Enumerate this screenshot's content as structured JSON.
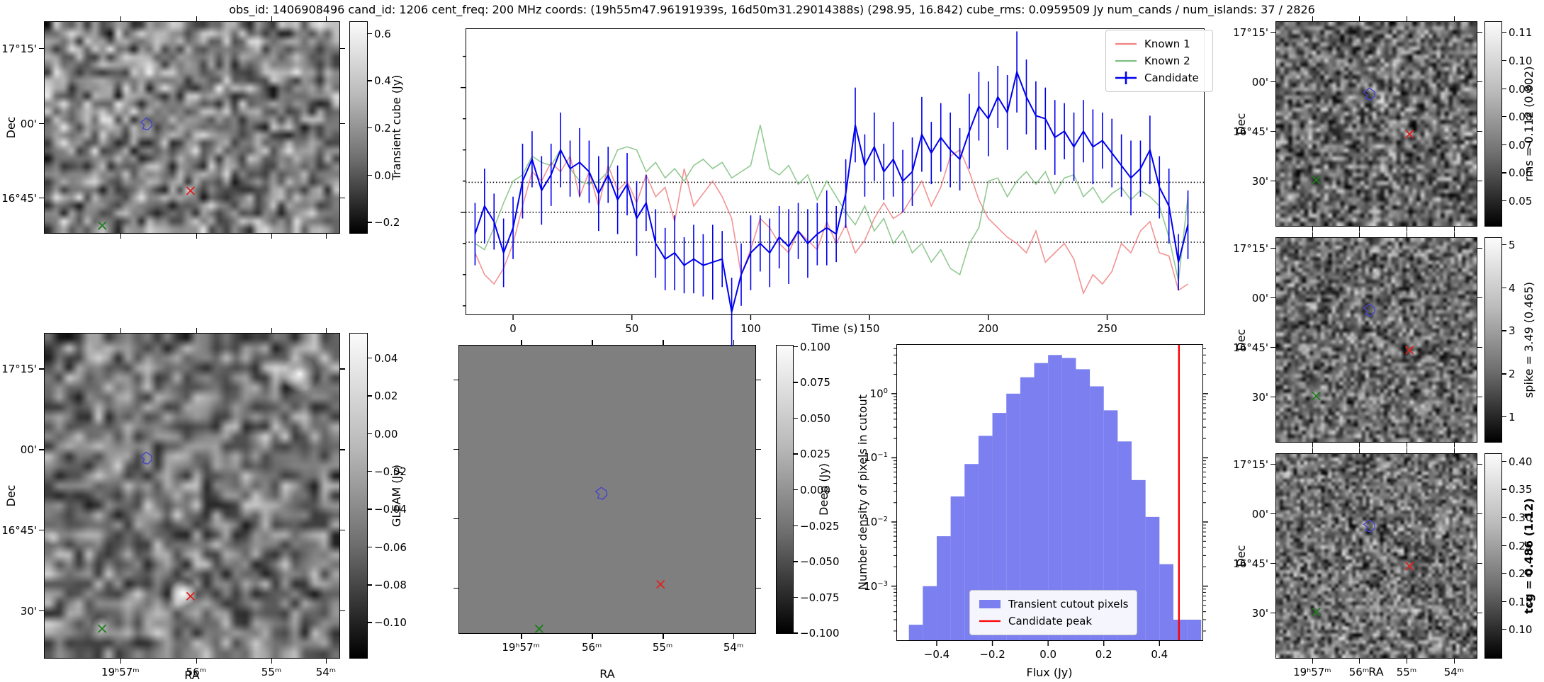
{
  "title": "obs_id: 1406908496 cand_id: 1206 cent_freq: 200 MHz coords: (19h55m47.96191939s, 16d50m31.29014388s) (298.95, 16.842) cube_rms: 0.0959509 Jy num_cands / num_islands: 37 / 2826",
  "axes": {
    "dec_label": "Dec",
    "ra_label": "RA"
  },
  "colors": {
    "known1": "#f08080",
    "known2": "#7fbf7f",
    "candidate": "#0000ee",
    "hist_fill": "#7b7ff0",
    "peak_line": "#ff0000",
    "contour": "#4646c8",
    "known1_marker": "#dd2222",
    "known2_marker": "#1e7d1e",
    "deep_gray": "#7f7f7f"
  },
  "panels": {
    "transient": {
      "dec_ticks": [
        {
          "label": "17°15'",
          "rel": 0.127
        },
        {
          "label": "00'",
          "rel": 0.48
        },
        {
          "label": "16°45'",
          "rel": 0.83
        }
      ],
      "ra_rel": [
        0.258,
        0.514,
        0.768,
        0.952
      ],
      "colorbar": {
        "label": "Transient cube (Jy)",
        "ticks": [
          {
            "label": "0.6",
            "rel": 0.056
          },
          {
            "label": "0.4",
            "rel": 0.278
          },
          {
            "label": "0.2",
            "rel": 0.5
          },
          {
            "label": "0.0",
            "rel": 0.722
          },
          {
            "label": "−0.2",
            "rel": 0.944
          }
        ]
      },
      "markers": {
        "candidate": [
          0.345,
          0.485
        ],
        "known1": [
          0.495,
          0.8
        ],
        "known2": [
          0.195,
          0.965
        ]
      }
    },
    "gleam": {
      "dec_ticks": [
        {
          "label": "17°15'",
          "rel": 0.109
        },
        {
          "label": "00'",
          "rel": 0.357
        },
        {
          "label": "16°45'",
          "rel": 0.604
        },
        {
          "label": "30'",
          "rel": 0.852
        }
      ],
      "ra_ticks": [
        {
          "label": "19ʰ57ᵐ",
          "rel": 0.258
        },
        {
          "label": "56ᵐ",
          "rel": 0.514
        },
        {
          "label": "55ᵐ",
          "rel": 0.768
        },
        {
          "label": "54ᵐ",
          "rel": 0.952
        }
      ],
      "colorbar": {
        "label": "GLEAM (Jy)",
        "ticks": [
          {
            "label": "0.04",
            "rel": 0.076
          },
          {
            "label": "0.02",
            "rel": 0.192
          },
          {
            "label": "0.00",
            "rel": 0.308
          },
          {
            "label": "−0.02",
            "rel": 0.424
          },
          {
            "label": "−0.04",
            "rel": 0.54
          },
          {
            "label": "−0.06",
            "rel": 0.656
          },
          {
            "label": "−0.08",
            "rel": 0.772
          },
          {
            "label": "−0.10",
            "rel": 0.888
          }
        ]
      },
      "markers": {
        "candidate": [
          0.345,
          0.385
        ],
        "known1": [
          0.495,
          0.81
        ],
        "known2": [
          0.195,
          0.91
        ]
      }
    },
    "deep": {
      "dec_rel": [
        0.12,
        0.36,
        0.6,
        0.84
      ],
      "ra_ticks": [
        {
          "label": "19ʰ57ᵐ",
          "rel": 0.21
        },
        {
          "label": "56ᵐ",
          "rel": 0.448
        },
        {
          "label": "55ᵐ",
          "rel": 0.686
        },
        {
          "label": "54ᵐ",
          "rel": 0.924
        }
      ],
      "colorbar": {
        "label": "Deep (Jy)",
        "ticks": [
          {
            "label": "0.100",
            "rel": 0.004
          },
          {
            "label": "0.075",
            "rel": 0.128
          },
          {
            "label": "0.050",
            "rel": 0.252
          },
          {
            "label": "0.025",
            "rel": 0.376
          },
          {
            "label": "0.000",
            "rel": 0.5
          },
          {
            "label": "−0.025",
            "rel": 0.624
          },
          {
            "label": "−0.050",
            "rel": 0.748
          },
          {
            "label": "−0.075",
            "rel": 0.872
          },
          {
            "label": "−0.100",
            "rel": 0.996
          }
        ]
      },
      "markers": {
        "candidate": [
          0.48,
          0.515
        ],
        "known1": [
          0.68,
          0.83
        ],
        "known2": [
          0.27,
          0.985
        ]
      }
    },
    "rms": {
      "dec_ticks": [
        {
          "label": "17°15'",
          "rel": 0.052
        },
        {
          "label": "00'",
          "rel": 0.293
        },
        {
          "label": "16°45'",
          "rel": 0.534
        },
        {
          "label": "30'",
          "rel": 0.776
        }
      ],
      "ra_rel": [
        0.182,
        0.414,
        0.649,
        0.884
      ],
      "colorbar": {
        "label": "rms = 0.112 (0.802)",
        "ticks": [
          {
            "label": "0.11",
            "rel": 0.052
          },
          {
            "label": "0.10",
            "rel": 0.189
          },
          {
            "label": "0.09",
            "rel": 0.326
          },
          {
            "label": "0.08",
            "rel": 0.462
          },
          {
            "label": "0.07",
            "rel": 0.599
          },
          {
            "label": "0.06",
            "rel": 0.736
          },
          {
            "label": "0.05",
            "rel": 0.872
          }
        ]
      },
      "markers": {
        "candidate": [
          0.465,
          0.355
        ],
        "known1": [
          0.665,
          0.55
        ],
        "known2": [
          0.2,
          0.775
        ]
      }
    },
    "spike": {
      "dec_ticks": [
        {
          "label": "17°15'",
          "rel": 0.052
        },
        {
          "label": "00'",
          "rel": 0.293
        },
        {
          "label": "16°45'",
          "rel": 0.534
        },
        {
          "label": "30'",
          "rel": 0.776
        }
      ],
      "ra_rel": [
        0.182,
        0.414,
        0.649,
        0.884
      ],
      "colorbar": {
        "label": "spike = 3.49 (0.465)",
        "ticks": [
          {
            "label": "5",
            "rel": 0.034
          },
          {
            "label": "4",
            "rel": 0.244
          },
          {
            "label": "3",
            "rel": 0.453
          },
          {
            "label": "2",
            "rel": 0.663
          },
          {
            "label": "1",
            "rel": 0.872
          }
        ]
      },
      "markers": {
        "candidate": [
          0.465,
          0.355
        ],
        "known1": [
          0.665,
          0.55
        ],
        "known2": [
          0.2,
          0.775
        ]
      }
    },
    "tcg": {
      "dec_ticks": [
        {
          "label": "17°15'",
          "rel": 0.052
        },
        {
          "label": "00'",
          "rel": 0.293
        },
        {
          "label": "16°45'",
          "rel": 0.534
        },
        {
          "label": "30'",
          "rel": 0.776
        }
      ],
      "ra_ticks": [
        {
          "label": "19ʰ57ᵐ",
          "rel": 0.182
        },
        {
          "label": "56ᵐ",
          "rel": 0.414
        },
        {
          "label": "55ᵐ",
          "rel": 0.649
        },
        {
          "label": "54ᵐ",
          "rel": 0.884
        }
      ],
      "colorbar": {
        "label": "tcg = 0.486 (1.12)",
        "bold": true,
        "ticks": [
          {
            "label": "0.40",
            "rel": 0.038
          },
          {
            "label": "0.35",
            "rel": 0.174
          },
          {
            "label": "0.30",
            "rel": 0.31
          },
          {
            "label": "0.25",
            "rel": 0.447
          },
          {
            "label": "0.20",
            "rel": 0.583
          },
          {
            "label": "0.15",
            "rel": 0.719
          },
          {
            "label": "0.10",
            "rel": 0.855
          }
        ]
      },
      "markers": {
        "candidate": [
          0.465,
          0.355
        ],
        "known1": [
          0.665,
          0.55
        ],
        "known2": [
          0.2,
          0.775
        ]
      }
    }
  },
  "chart_data": [
    {
      "type": "line",
      "title": "",
      "xlabel": "Time (s)",
      "ylabel": "",
      "xlim": [
        -20,
        291
      ],
      "ylim": [
        -0.33,
        0.59
      ],
      "x_ticks": [
        0,
        50,
        100,
        150,
        200,
        250
      ],
      "hlines": [
        0.096,
        0.0,
        -0.096
      ],
      "hline_style": "dotted",
      "legend_position": "upper right",
      "x": [
        -16,
        -12,
        -8,
        -4,
        0,
        4,
        8,
        12,
        16,
        20,
        24,
        28,
        32,
        36,
        40,
        44,
        48,
        52,
        56,
        60,
        64,
        68,
        72,
        76,
        80,
        84,
        88,
        92,
        96,
        100,
        104,
        108,
        112,
        116,
        120,
        124,
        128,
        132,
        136,
        140,
        144,
        148,
        152,
        156,
        160,
        164,
        168,
        172,
        176,
        180,
        184,
        188,
        192,
        196,
        200,
        204,
        208,
        212,
        216,
        220,
        224,
        228,
        232,
        236,
        240,
        244,
        248,
        252,
        256,
        260,
        264,
        268,
        272,
        276,
        280,
        284
      ],
      "series": [
        {
          "name": "Known 1",
          "y": [
            -0.13,
            -0.2,
            -0.23,
            -0.18,
            -0.1,
            0.02,
            0.13,
            0.1,
            0.16,
            0.13,
            0.18,
            0.05,
            0.13,
            0.02,
            0.15,
            0.07,
            0.1,
            0.03,
            0.12,
            0.05,
            0.08,
            -0.03,
            0.14,
            0.02,
            0.06,
            0.1,
            0.05,
            -0.02,
            -0.2,
            -0.12,
            -0.02,
            -0.05,
            -0.1,
            -0.13,
            -0.06,
            -0.09,
            -0.12,
            -0.03,
            -0.1,
            -0.04,
            -0.13,
            -0.09,
            -0.02,
            0.03,
            -0.02,
            0.0,
            0.05,
            0.1,
            0.02,
            0.08,
            0.18,
            0.2,
            0.13,
            0.04,
            -0.02,
            -0.05,
            -0.08,
            -0.1,
            -0.13,
            -0.06,
            -0.16,
            -0.13,
            -0.1,
            -0.15,
            -0.26,
            -0.2,
            -0.23,
            -0.19,
            -0.1,
            -0.13,
            -0.06,
            -0.03,
            -0.13,
            -0.14,
            -0.25,
            -0.23
          ]
        },
        {
          "name": "Known 2",
          "y": [
            -0.1,
            -0.12,
            -0.05,
            0.03,
            0.1,
            0.12,
            0.18,
            0.16,
            0.15,
            0.2,
            0.14,
            0.1,
            0.09,
            0.1,
            0.13,
            0.2,
            0.21,
            0.2,
            0.13,
            0.16,
            0.11,
            0.14,
            0.1,
            0.15,
            0.17,
            0.14,
            0.16,
            0.11,
            0.13,
            0.15,
            0.28,
            0.14,
            0.12,
            0.15,
            0.09,
            0.12,
            0.04,
            0.1,
            0.05,
            0.0,
            -0.04,
            0.02,
            -0.06,
            -0.02,
            -0.1,
            -0.06,
            -0.13,
            -0.1,
            -0.16,
            -0.12,
            -0.18,
            -0.2,
            -0.1,
            -0.05,
            0.1,
            0.11,
            0.05,
            0.1,
            0.13,
            0.09,
            0.13,
            0.06,
            0.11,
            0.12,
            0.05,
            0.08,
            0.03,
            0.06,
            0.08,
            0.04,
            0.07,
            0.05,
            0.02,
            -0.08,
            -0.22,
            0.05
          ]
        },
        {
          "name": "Candidate",
          "y": [
            -0.07,
            0.02,
            -0.03,
            -0.13,
            -0.05,
            0.1,
            0.17,
            0.07,
            0.12,
            0.2,
            0.14,
            0.16,
            0.13,
            0.06,
            0.12,
            0.04,
            0.09,
            -0.02,
            0.03,
            -0.1,
            -0.15,
            -0.13,
            -0.17,
            -0.15,
            -0.17,
            -0.16,
            -0.15,
            -0.32,
            -0.2,
            -0.13,
            -0.1,
            -0.13,
            -0.08,
            -0.11,
            -0.06,
            -0.1,
            -0.07,
            -0.05,
            -0.07,
            0.06,
            0.28,
            0.15,
            0.21,
            0.13,
            0.17,
            0.1,
            0.13,
            0.25,
            0.19,
            0.24,
            0.2,
            0.17,
            0.26,
            0.34,
            0.3,
            0.37,
            0.32,
            0.45,
            0.37,
            0.31,
            0.3,
            0.24,
            0.26,
            0.21,
            0.26,
            0.21,
            0.23,
            0.19,
            0.15,
            0.11,
            0.14,
            0.2,
            0.08,
            0.02,
            -0.16,
            -0.04
          ],
          "yerr": [
            0.1,
            0.12,
            0.09,
            0.11,
            0.1,
            0.12,
            0.09,
            0.11,
            0.1,
            0.12,
            0.09,
            0.11,
            0.1,
            0.12,
            0.09,
            0.11,
            0.1,
            0.12,
            0.09,
            0.11,
            0.1,
            0.12,
            0.09,
            0.11,
            0.1,
            0.12,
            0.09,
            0.11,
            0.1,
            0.12,
            0.09,
            0.11,
            0.1,
            0.12,
            0.09,
            0.11,
            0.1,
            0.12,
            0.09,
            0.11,
            0.12,
            0.1,
            0.11,
            0.09,
            0.12,
            0.1,
            0.11,
            0.12,
            0.1,
            0.11,
            0.12,
            0.1,
            0.12,
            0.11,
            0.12,
            0.1,
            0.12,
            0.13,
            0.12,
            0.11,
            0.1,
            0.12,
            0.09,
            0.11,
            0.1,
            0.12,
            0.09,
            0.11,
            0.1,
            0.12,
            0.09,
            0.11,
            0.1,
            0.12,
            0.09,
            0.11
          ]
        }
      ]
    },
    {
      "type": "bar",
      "subtype": "histogram",
      "xlabel": "Flux (Jy)",
      "ylabel": "Number density of pixels in cutout",
      "yscale": "log",
      "xlim": [
        -0.545,
        0.557
      ],
      "ylim": [
        0.00014,
        5.9
      ],
      "x_ticks": [
        "−0.4",
        "−0.2",
        "0.0",
        "0.2",
        "0.4"
      ],
      "x_tick_values": [
        -0.4,
        -0.2,
        0.0,
        0.2,
        0.4
      ],
      "y_tick_exponents": [
        0,
        -1,
        -2,
        -3
      ],
      "bin_edges": [
        -0.5,
        -0.45,
        -0.4,
        -0.35,
        -0.3,
        -0.25,
        -0.2,
        -0.15,
        -0.1,
        -0.05,
        0.0,
        0.05,
        0.1,
        0.15,
        0.2,
        0.25,
        0.3,
        0.35,
        0.4,
        0.45,
        0.5,
        0.55
      ],
      "densities": [
        0.00025,
        0.001,
        0.006,
        0.025,
        0.08,
        0.22,
        0.5,
        1.0,
        1.8,
        3.0,
        4.0,
        3.6,
        2.4,
        1.3,
        0.55,
        0.18,
        0.045,
        0.012,
        0.0022,
        0.0003,
        0.0003
      ],
      "vline": {
        "value": 0.47,
        "label": "Candidate peak"
      },
      "legend": [
        "Transient cutout pixels",
        "Candidate peak"
      ],
      "legend_position": "lower center"
    }
  ]
}
